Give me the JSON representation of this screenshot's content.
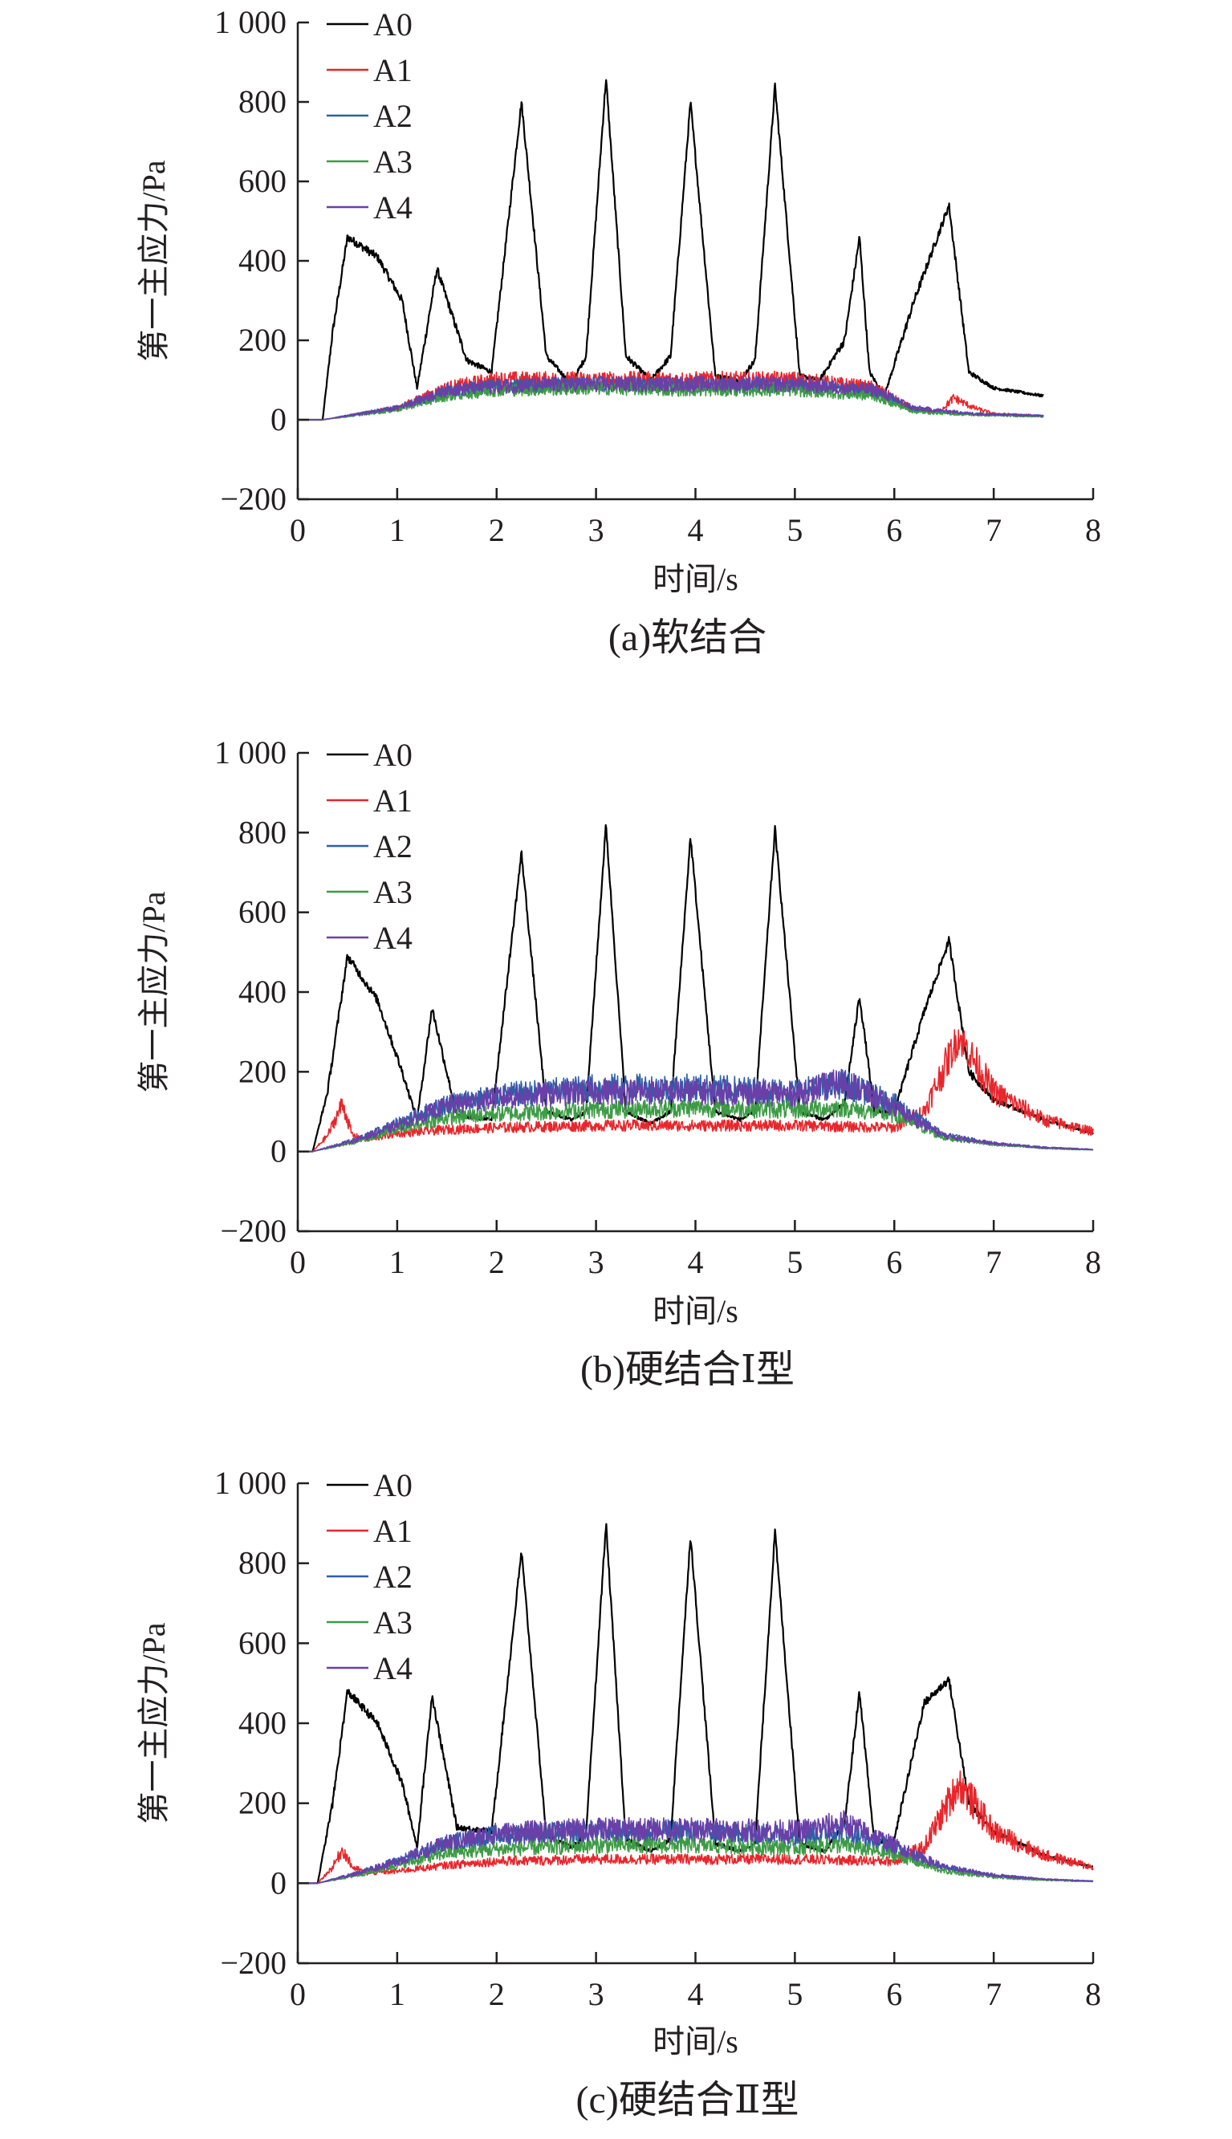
{
  "figure": {
    "panel_captions": [
      "(a)软结合",
      "(b)硬结合Ⅰ型",
      "(c)硬结合Ⅱ型"
    ]
  },
  "colors": {
    "A0": "#000000",
    "A1": "#e8262b",
    "A2": "#2e5ea8",
    "A3": "#3d9b45",
    "A4": "#6a3fa8",
    "axis": "#231f20"
  },
  "chart_data": [
    {
      "type": "line",
      "caption": "(a)软结合",
      "xlabel": "时间/s",
      "ylabel": "第一主应力/Pa",
      "xlim": [
        0,
        8
      ],
      "ylim": [
        -200,
        1000
      ],
      "xticks": [
        "0",
        "1",
        "2",
        "3",
        "4",
        "5",
        "6",
        "7",
        "8"
      ],
      "yticks": [
        "−200",
        "0",
        "200",
        "400",
        "600",
        "800",
        "1 000"
      ],
      "legend": [
        "A0",
        "A1",
        "A2",
        "A3",
        "A4"
      ],
      "legend_position": "top-left",
      "grid": false,
      "series": [
        {
          "name": "A0",
          "x": [
            0,
            0.25,
            0.35,
            0.5,
            0.8,
            1.05,
            1.2,
            1.4,
            1.7,
            1.95,
            2.25,
            2.5,
            2.75,
            2.9,
            3.1,
            3.3,
            3.55,
            3.75,
            3.95,
            4.2,
            4.45,
            4.6,
            4.8,
            5.05,
            5.25,
            5.5,
            5.65,
            5.75,
            5.9,
            6.2,
            6.55,
            6.75,
            7.0,
            7.5
          ],
          "y": [
            0,
            0,
            220,
            460,
            410,
            300,
            80,
            380,
            150,
            120,
            800,
            160,
            90,
            160,
            860,
            160,
            100,
            160,
            800,
            110,
            100,
            150,
            840,
            110,
            100,
            200,
            460,
            120,
            60,
            300,
            540,
            120,
            80,
            60
          ]
        },
        {
          "name": "A1",
          "x": [
            0,
            0.25,
            1.0,
            1.5,
            2.0,
            3.0,
            4.0,
            5.0,
            5.8,
            6.2,
            6.45,
            6.6,
            6.8,
            7.0,
            7.5
          ],
          "y": [
            0,
            0,
            30,
            80,
            100,
            100,
            100,
            100,
            80,
            25,
            20,
            55,
            30,
            15,
            10
          ]
        },
        {
          "name": "A2",
          "x": [
            0,
            0.25,
            1.0,
            1.5,
            2.0,
            3.0,
            4.0,
            5.0,
            5.8,
            6.2,
            6.8,
            7.5
          ],
          "y": [
            0,
            0,
            30,
            70,
            85,
            90,
            85,
            85,
            70,
            25,
            15,
            10
          ]
        },
        {
          "name": "A3",
          "x": [
            0,
            0.25,
            1.0,
            1.5,
            2.0,
            3.0,
            4.0,
            5.0,
            5.8,
            6.2,
            6.8,
            7.5
          ],
          "y": [
            0,
            0,
            25,
            60,
            75,
            80,
            75,
            75,
            60,
            20,
            12,
            8
          ]
        },
        {
          "name": "A4",
          "x": [
            0,
            0.25,
            1.0,
            1.5,
            2.0,
            3.0,
            4.0,
            5.0,
            5.8,
            6.2,
            6.8,
            7.5
          ],
          "y": [
            0,
            0,
            30,
            75,
            85,
            90,
            90,
            90,
            75,
            30,
            15,
            10
          ]
        }
      ]
    },
    {
      "type": "line",
      "caption": "(b)硬结合Ⅰ型",
      "xlabel": "时间/s",
      "ylabel": "第一主应力/Pa",
      "xlim": [
        0,
        8
      ],
      "ylim": [
        -200,
        1000
      ],
      "xticks": [
        "0",
        "1",
        "2",
        "3",
        "4",
        "5",
        "6",
        "7",
        "8"
      ],
      "yticks": [
        "−200",
        "0",
        "200",
        "400",
        "600",
        "800",
        "1 000"
      ],
      "legend": [
        "A0",
        "A1",
        "A2",
        "A3",
        "A4"
      ],
      "legend_position": "top-left",
      "grid": false,
      "series": [
        {
          "name": "A0",
          "x": [
            0,
            0.15,
            0.3,
            0.5,
            0.8,
            1.05,
            1.2,
            1.35,
            1.6,
            1.95,
            2.25,
            2.5,
            2.75,
            2.9,
            3.1,
            3.3,
            3.55,
            3.75,
            3.95,
            4.2,
            4.45,
            4.6,
            4.8,
            5.05,
            5.3,
            5.5,
            5.65,
            5.8,
            6.0,
            6.3,
            6.55,
            6.75,
            7.0,
            7.5,
            8.0
          ],
          "y": [
            0,
            0,
            150,
            490,
            380,
            200,
            80,
            360,
            90,
            80,
            750,
            100,
            80,
            100,
            820,
            100,
            70,
            100,
            790,
            100,
            80,
            100,
            810,
            100,
            80,
            120,
            390,
            100,
            100,
            350,
            530,
            200,
            130,
            80,
            45
          ]
        },
        {
          "name": "A1",
          "x": [
            0,
            0.15,
            0.3,
            0.45,
            0.55,
            0.7,
            1.0,
            1.5,
            2.0,
            3.0,
            4.0,
            5.0,
            6.0,
            6.3,
            6.65,
            6.8,
            7.0,
            7.5,
            8.0
          ],
          "y": [
            0,
            0,
            40,
            120,
            40,
            30,
            45,
            55,
            60,
            65,
            65,
            65,
            60,
            100,
            290,
            230,
            150,
            80,
            50
          ]
        },
        {
          "name": "A2",
          "x": [
            0,
            0.15,
            0.6,
            1.0,
            1.5,
            2.0,
            3.0,
            4.0,
            5.0,
            5.5,
            6.0,
            6.5,
            7.0,
            7.5,
            8.0
          ],
          "y": [
            0,
            0,
            30,
            70,
            120,
            140,
            160,
            160,
            150,
            170,
            120,
            40,
            20,
            10,
            5
          ]
        },
        {
          "name": "A3",
          "x": [
            0,
            0.15,
            0.6,
            1.0,
            1.5,
            2.0,
            3.0,
            4.0,
            5.0,
            5.5,
            6.0,
            6.5,
            7.0,
            7.5,
            8.0
          ],
          "y": [
            0,
            0,
            25,
            55,
            85,
            95,
            105,
            110,
            105,
            110,
            90,
            35,
            18,
            8,
            4
          ]
        },
        {
          "name": "A4",
          "x": [
            0,
            0.15,
            0.6,
            1.0,
            1.5,
            2.0,
            3.0,
            4.0,
            5.0,
            5.5,
            6.0,
            6.5,
            7.0,
            7.5,
            8.0
          ],
          "y": [
            0,
            0,
            30,
            65,
            115,
            135,
            150,
            150,
            145,
            175,
            110,
            40,
            20,
            10,
            5
          ]
        }
      ]
    },
    {
      "type": "line",
      "caption": "(c)硬结合Ⅱ型",
      "xlabel": "时间/s",
      "ylabel": "第一主应力/Pa",
      "xlim": [
        0,
        8
      ],
      "ylim": [
        -200,
        1000
      ],
      "xticks": [
        "0",
        "1",
        "2",
        "3",
        "4",
        "5",
        "6",
        "7",
        "8"
      ],
      "yticks": [
        "−200",
        "0",
        "200",
        "400",
        "600",
        "800",
        "1 000"
      ],
      "legend": [
        "A0",
        "A1",
        "A2",
        "A3",
        "A4"
      ],
      "legend_position": "top-left",
      "grid": false,
      "series": [
        {
          "name": "A0",
          "x": [
            0,
            0.2,
            0.35,
            0.5,
            0.8,
            1.05,
            1.2,
            1.35,
            1.6,
            1.95,
            2.25,
            2.5,
            2.75,
            2.9,
            3.1,
            3.3,
            3.55,
            3.75,
            3.95,
            4.2,
            4.45,
            4.6,
            4.8,
            5.05,
            5.3,
            5.5,
            5.65,
            5.8,
            6.0,
            6.3,
            6.55,
            6.75,
            7.0,
            7.5,
            8.0
          ],
          "y": [
            0,
            0,
            200,
            480,
            400,
            250,
            90,
            470,
            140,
            130,
            830,
            120,
            90,
            120,
            900,
            110,
            80,
            110,
            870,
            100,
            80,
            100,
            880,
            100,
            80,
            150,
            480,
            100,
            110,
            450,
            510,
            200,
            130,
            70,
            40
          ]
        },
        {
          "name": "A1",
          "x": [
            0,
            0.2,
            0.35,
            0.45,
            0.55,
            0.7,
            1.0,
            1.5,
            2.0,
            3.0,
            4.0,
            5.0,
            6.0,
            6.3,
            6.65,
            6.8,
            7.0,
            7.5,
            8.0
          ],
          "y": [
            0,
            0,
            40,
            85,
            40,
            25,
            30,
            45,
            55,
            60,
            60,
            60,
            55,
            90,
            250,
            200,
            130,
            70,
            40
          ]
        },
        {
          "name": "A2",
          "x": [
            0,
            0.2,
            0.6,
            1.0,
            1.5,
            2.0,
            3.0,
            4.0,
            5.0,
            5.5,
            6.0,
            6.5,
            7.0,
            7.5,
            8.0
          ],
          "y": [
            0,
            0,
            25,
            55,
            100,
            120,
            130,
            130,
            120,
            130,
            90,
            40,
            20,
            10,
            5
          ]
        },
        {
          "name": "A3",
          "x": [
            0,
            0.2,
            0.6,
            1.0,
            1.5,
            2.0,
            3.0,
            4.0,
            5.0,
            5.5,
            6.0,
            6.5,
            7.0,
            7.5,
            8.0
          ],
          "y": [
            0,
            0,
            20,
            45,
            75,
            85,
            95,
            95,
            90,
            95,
            70,
            30,
            15,
            8,
            4
          ]
        },
        {
          "name": "A4",
          "x": [
            0,
            0.2,
            0.6,
            1.0,
            1.5,
            2.0,
            3.0,
            4.0,
            5.0,
            5.5,
            6.0,
            6.5,
            7.0,
            7.5,
            8.0
          ],
          "y": [
            0,
            0,
            25,
            55,
            100,
            125,
            135,
            135,
            130,
            150,
            95,
            40,
            20,
            10,
            5
          ]
        }
      ]
    }
  ]
}
